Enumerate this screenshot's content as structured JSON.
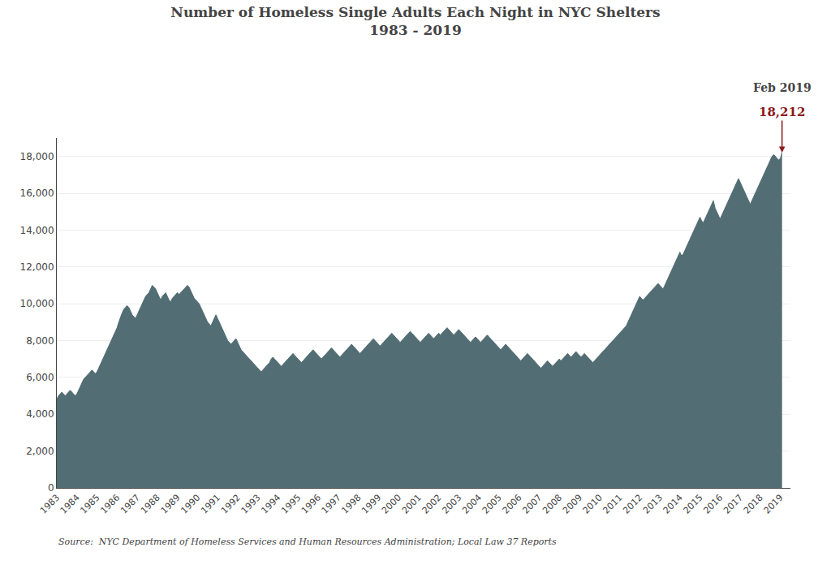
{
  "chart_data": {
    "type": "area",
    "title": "Number of Homeless Single Adults Each Night in NYC Shelters",
    "subtitle": "1983 - 2019",
    "source": "Source:  NYC Department of Homeless Services and Human Resources Administration; Local Law 37 Reports",
    "color": "#526d73",
    "x": [
      1983,
      1983.083333,
      1983.166667,
      1983.25,
      1983.333333,
      1983.416667,
      1983.5,
      1983.583333,
      1983.666667,
      1983.75,
      1983.833333,
      1983.916667,
      1984,
      1984.083333,
      1984.166667,
      1984.25,
      1984.333333,
      1984.416667,
      1984.5,
      1984.583333,
      1984.666667,
      1984.75,
      1984.833333,
      1984.916667,
      1985,
      1985.083333,
      1985.166667,
      1985.25,
      1985.333333,
      1985.416667,
      1985.5,
      1985.583333,
      1985.666667,
      1985.75,
      1985.833333,
      1985.916667,
      1986,
      1986.083333,
      1986.166667,
      1986.25,
      1986.333333,
      1986.416667,
      1986.5,
      1986.583333,
      1986.666667,
      1986.75,
      1986.833333,
      1986.916667,
      1987,
      1987.083333,
      1987.166667,
      1987.25,
      1987.333333,
      1987.416667,
      1987.5,
      1987.583333,
      1987.666667,
      1987.75,
      1987.833333,
      1987.916667,
      1988,
      1988.083333,
      1988.166667,
      1988.25,
      1988.333333,
      1988.416667,
      1988.5,
      1988.583333,
      1988.666667,
      1988.75,
      1988.833333,
      1988.916667,
      1989,
      1989.083333,
      1989.166667,
      1989.25,
      1989.333333,
      1989.416667,
      1989.5,
      1989.583333,
      1989.666667,
      1989.75,
      1989.833333,
      1989.916667,
      1990,
      1990.083333,
      1990.166667,
      1990.25,
      1990.333333,
      1990.416667,
      1990.5,
      1990.583333,
      1990.666667,
      1990.75,
      1990.833333,
      1990.916667,
      1991,
      1991.083333,
      1991.166667,
      1991.25,
      1991.333333,
      1991.416667,
      1991.5,
      1991.583333,
      1991.666667,
      1991.75,
      1991.833333,
      1991.916667,
      1992,
      1992.083333,
      1992.166667,
      1992.25,
      1992.333333,
      1992.416667,
      1992.5,
      1992.583333,
      1992.666667,
      1992.75,
      1992.833333,
      1992.916667,
      1993,
      1993.083333,
      1993.166667,
      1993.25,
      1993.333333,
      1993.416667,
      1993.5,
      1993.583333,
      1993.666667,
      1993.75,
      1993.833333,
      1993.916667,
      1994,
      1994.083333,
      1994.166667,
      1994.25,
      1994.333333,
      1994.416667,
      1994.5,
      1994.583333,
      1994.666667,
      1994.75,
      1994.833333,
      1994.916667,
      1995,
      1995.083333,
      1995.166667,
      1995.25,
      1995.333333,
      1995.416667,
      1995.5,
      1995.583333,
      1995.666667,
      1995.75,
      1995.833333,
      1995.916667,
      1996,
      1996.083333,
      1996.166667,
      1996.25,
      1996.333333,
      1996.416667,
      1996.5,
      1996.583333,
      1996.666667,
      1996.75,
      1996.833333,
      1996.916667,
      1997,
      1997.083333,
      1997.166667,
      1997.25,
      1997.333333,
      1997.416667,
      1997.5,
      1997.583333,
      1997.666667,
      1997.75,
      1997.833333,
      1997.916667,
      1998,
      1998.083333,
      1998.166667,
      1998.25,
      1998.333333,
      1998.416667,
      1998.5,
      1998.583333,
      1998.666667,
      1998.75,
      1998.833333,
      1998.916667,
      1999,
      1999.083333,
      1999.166667,
      1999.25,
      1999.333333,
      1999.416667,
      1999.5,
      1999.583333,
      1999.666667,
      1999.75,
      1999.833333,
      1999.916667,
      2000,
      2000.083333,
      2000.166667,
      2000.25,
      2000.333333,
      2000.416667,
      2000.5,
      2000.583333,
      2000.666667,
      2000.75,
      2000.833333,
      2000.916667,
      2001,
      2001.083333,
      2001.166667,
      2001.25,
      2001.333333,
      2001.416667,
      2001.5,
      2001.583333,
      2001.666667,
      2001.75,
      2001.833333,
      2001.916667,
      2002,
      2002.083333,
      2002.166667,
      2002.25,
      2002.333333,
      2002.416667,
      2002.5,
      2002.583333,
      2002.666667,
      2002.75,
      2002.833333,
      2002.916667,
      2003,
      2003.083333,
      2003.166667,
      2003.25,
      2003.333333,
      2003.416667,
      2003.5,
      2003.583333,
      2003.666667,
      2003.75,
      2003.833333,
      2003.916667,
      2004,
      2004.083333,
      2004.166667,
      2004.25,
      2004.333333,
      2004.416667,
      2004.5,
      2004.583333,
      2004.666667,
      2004.75,
      2004.833333,
      2004.916667,
      2005,
      2005.083333,
      2005.166667,
      2005.25,
      2005.333333,
      2005.416667,
      2005.5,
      2005.583333,
      2005.666667,
      2005.75,
      2005.833333,
      2005.916667,
      2006,
      2006.083333,
      2006.166667,
      2006.25,
      2006.333333,
      2006.416667,
      2006.5,
      2006.583333,
      2006.666667,
      2006.75,
      2006.833333,
      2006.916667,
      2007,
      2007.083333,
      2007.166667,
      2007.25,
      2007.333333,
      2007.416667,
      2007.5,
      2007.583333,
      2007.666667,
      2007.75,
      2007.833333,
      2007.916667,
      2008,
      2008.083333,
      2008.166667,
      2008.25,
      2008.333333,
      2008.416667,
      2008.5,
      2008.583333,
      2008.666667,
      2008.75,
      2008.833333,
      2008.916667,
      2009,
      2009.083333,
      2009.166667,
      2009.25,
      2009.333333,
      2009.416667,
      2009.5,
      2009.583333,
      2009.666667,
      2009.75,
      2009.833333,
      2009.916667,
      2010,
      2010.083333,
      2010.166667,
      2010.25,
      2010.333333,
      2010.416667,
      2010.5,
      2010.583333,
      2010.666667,
      2010.75,
      2010.833333,
      2010.916667,
      2011,
      2011.083333,
      2011.166667,
      2011.25,
      2011.333333,
      2011.416667,
      2011.5,
      2011.583333,
      2011.666667,
      2011.75,
      2011.833333,
      2011.916667,
      2012,
      2012.083333,
      2012.166667,
      2012.25,
      2012.333333,
      2012.416667,
      2012.5,
      2012.583333,
      2012.666667,
      2012.75,
      2012.833333,
      2012.916667,
      2013,
      2013.083333,
      2013.166667,
      2013.25,
      2013.333333,
      2013.416667,
      2013.5,
      2013.583333,
      2013.666667,
      2013.75,
      2013.833333,
      2013.916667,
      2014,
      2014.083333,
      2014.166667,
      2014.25,
      2014.333333,
      2014.416667,
      2014.5,
      2014.583333,
      2014.666667,
      2014.75,
      2014.833333,
      2014.916667,
      2015,
      2015.083333,
      2015.166667,
      2015.25,
      2015.333333,
      2015.416667,
      2015.5,
      2015.583333,
      2015.666667,
      2015.75,
      2015.833333,
      2015.916667,
      2016,
      2016.083333,
      2016.166667,
      2016.25,
      2016.333333,
      2016.416667,
      2016.5,
      2016.583333,
      2016.666667,
      2016.75,
      2016.833333,
      2016.916667,
      2017,
      2017.083333,
      2017.166667,
      2017.25,
      2017.333333,
      2017.416667,
      2017.5,
      2017.583333,
      2017.666667,
      2017.75,
      2017.833333,
      2017.916667,
      2018,
      2018.083333,
      2018.166667,
      2018.25,
      2018.333333,
      2018.416667,
      2018.5,
      2018.583333,
      2018.666667,
      2018.75,
      2018.833333,
      2018.916667,
      2019,
      2019.083333
    ],
    "values": [
      4800,
      5000,
      5100,
      5200,
      5100,
      5000,
      5100,
      5200,
      5300,
      5200,
      5100,
      5000,
      5100,
      5300,
      5500,
      5700,
      5900,
      6000,
      6100,
      6200,
      6300,
      6400,
      6300,
      6200,
      6300,
      6500,
      6700,
      6900,
      7100,
      7300,
      7500,
      7700,
      7900,
      8100,
      8300,
      8500,
      8700,
      9000,
      9300,
      9500,
      9700,
      9800,
      9900,
      9800,
      9600,
      9400,
      9300,
      9200,
      9400,
      9600,
      9800,
      10000,
      10200,
      10400,
      10500,
      10600,
      10800,
      11000,
      10900,
      10800,
      10600,
      10400,
      10200,
      10400,
      10500,
      10600,
      10400,
      10200,
      10100,
      10300,
      10400,
      10500,
      10600,
      10500,
      10600,
      10700,
      10800,
      10900,
      11000,
      10900,
      10700,
      10500,
      10300,
      10200,
      10100,
      10000,
      9800,
      9600,
      9400,
      9200,
      9000,
      8900,
      8800,
      9000,
      9200,
      9400,
      9200,
      9000,
      8800,
      8600,
      8400,
      8200,
      8000,
      7900,
      7800,
      7900,
      8000,
      8100,
      7900,
      7700,
      7500,
      7400,
      7300,
      7200,
      7100,
      7000,
      6900,
      6800,
      6700,
      6600,
      6500,
      6400,
      6300,
      6400,
      6500,
      6600,
      6700,
      6800,
      7000,
      7100,
      7000,
      6900,
      6800,
      6700,
      6600,
      6700,
      6800,
      6900,
      7000,
      7100,
      7200,
      7300,
      7200,
      7100,
      7000,
      6900,
      6800,
      6900,
      7000,
      7100,
      7200,
      7300,
      7400,
      7500,
      7400,
      7300,
      7200,
      7100,
      7000,
      7100,
      7200,
      7300,
      7400,
      7500,
      7600,
      7500,
      7400,
      7300,
      7200,
      7100,
      7200,
      7300,
      7400,
      7500,
      7600,
      7700,
      7800,
      7700,
      7600,
      7500,
      7400,
      7300,
      7400,
      7500,
      7600,
      7700,
      7800,
      7900,
      8000,
      8100,
      8000,
      7900,
      7800,
      7700,
      7800,
      7900,
      8000,
      8100,
      8200,
      8300,
      8400,
      8300,
      8200,
      8100,
      8000,
      7900,
      8000,
      8100,
      8200,
      8300,
      8400,
      8500,
      8400,
      8300,
      8200,
      8100,
      8000,
      7900,
      8000,
      8100,
      8200,
      8300,
      8400,
      8300,
      8200,
      8100,
      8200,
      8300,
      8400,
      8300,
      8400,
      8500,
      8600,
      8700,
      8600,
      8500,
      8400,
      8300,
      8400,
      8500,
      8600,
      8500,
      8400,
      8300,
      8200,
      8100,
      8000,
      7900,
      8000,
      8100,
      8200,
      8100,
      8000,
      7900,
      8000,
      8100,
      8200,
      8300,
      8200,
      8100,
      8000,
      7900,
      7800,
      7700,
      7600,
      7500,
      7600,
      7700,
      7800,
      7700,
      7600,
      7500,
      7400,
      7300,
      7200,
      7100,
      7000,
      6900,
      7000,
      7100,
      7200,
      7300,
      7200,
      7100,
      7000,
      6900,
      6800,
      6700,
      6600,
      6500,
      6600,
      6700,
      6800,
      6900,
      6800,
      6700,
      6600,
      6700,
      6800,
      6900,
      7000,
      6900,
      7000,
      7100,
      7200,
      7300,
      7200,
      7100,
      7200,
      7300,
      7400,
      7300,
      7200,
      7100,
      7200,
      7300,
      7200,
      7100,
      7000,
      6900,
      6800,
      6900,
      7000,
      7100,
      7200,
      7300,
      7400,
      7500,
      7600,
      7700,
      7800,
      7900,
      8000,
      8100,
      8200,
      8300,
      8400,
      8500,
      8600,
      8700,
      8800,
      9000,
      9200,
      9400,
      9600,
      9800,
      10000,
      10200,
      10400,
      10300,
      10200,
      10300,
      10400,
      10500,
      10600,
      10700,
      10800,
      10900,
      11000,
      11100,
      11000,
      10900,
      10800,
      11000,
      11200,
      11400,
      11600,
      11800,
      12000,
      12200,
      12400,
      12600,
      12800,
      12600,
      12700,
      12900,
      13100,
      13300,
      13500,
      13700,
      13900,
      14100,
      14300,
      14500,
      14700,
      14500,
      14400,
      14600,
      14800,
      15000,
      15200,
      15400,
      15600,
      15200,
      15000,
      14800,
      14600,
      14800,
      15000,
      15200,
      15400,
      15600,
      15800,
      16000,
      16200,
      16400,
      16600,
      16800,
      16600,
      16400,
      16200,
      16000,
      15800,
      15600,
      15400,
      15600,
      15800,
      16000,
      16200,
      16400,
      16600,
      16800,
      17000,
      17200,
      17400,
      17600,
      17800,
      18000,
      18100,
      18000,
      17900,
      17800,
      17900,
      18212
    ],
    "xlim": [
      1983,
      2019.5
    ],
    "xticks": [
      1983,
      1984,
      1985,
      1986,
      1987,
      1988,
      1989,
      1990,
      1991,
      1992,
      1993,
      1994,
      1995,
      1996,
      1997,
      1998,
      1999,
      2000,
      2001,
      2002,
      2003,
      2004,
      2005,
      2006,
      2007,
      2008,
      2009,
      2010,
      2011,
      2012,
      2013,
      2014,
      2015,
      2016,
      2017,
      2018,
      2019
    ],
    "ylim": [
      0,
      19000
    ],
    "yticks": [
      0,
      {
        "value": 2000,
        "label": "2,000"
      },
      {
        "value": 4000,
        "label": "4,000"
      },
      {
        "value": 6000,
        "label": "6,000"
      },
      {
        "value": 8000,
        "label": "8,000"
      },
      {
        "value": 10000,
        "label": "10,000"
      },
      {
        "value": 12000,
        "label": "12,000"
      },
      {
        "value": 14000,
        "label": "14,000"
      },
      {
        "value": 16000,
        "label": "16,000"
      },
      {
        "value": 18000,
        "label": "18,000"
      }
    ],
    "grid": true,
    "annotations": [
      {
        "x": 2019.083333,
        "y": 18212,
        "text": "Feb 2019",
        "value_label": "18,212",
        "color": "#8b1a1a"
      }
    ]
  }
}
